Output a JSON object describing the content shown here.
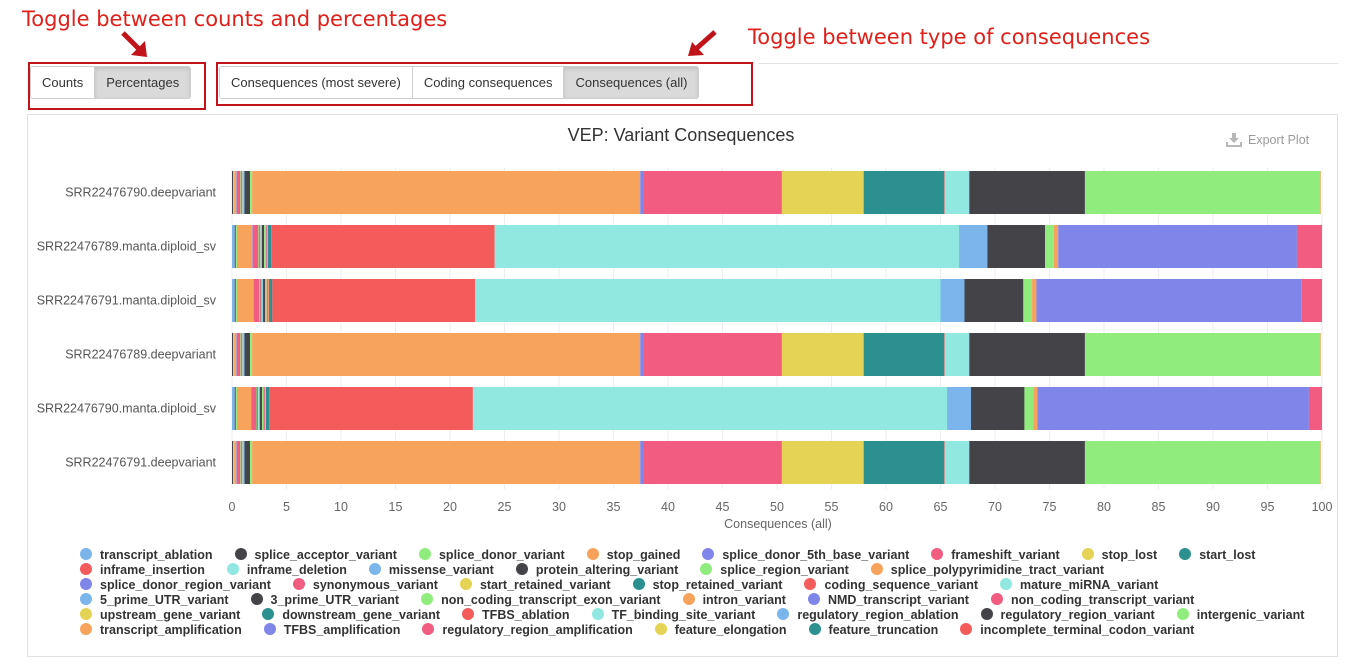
{
  "annotations": {
    "left": "Toggle between counts and percentages",
    "right": "Toggle between type of consequences"
  },
  "toggles": {
    "mode": {
      "items": [
        "Counts",
        "Percentages"
      ],
      "active": 1
    },
    "type": {
      "items": [
        "Consequences (most severe)",
        "Coding consequences",
        "Consequences (all)"
      ],
      "active": 2
    }
  },
  "export_label": "Export Plot",
  "colors": {
    "annotation": "#e0201b",
    "palette": [
      "#7cb5ec",
      "#434348",
      "#90ed7d",
      "#f7a35c",
      "#8085e9",
      "#f15c80",
      "#e4d354",
      "#2b908f",
      "#f45b5b",
      "#91e8e1"
    ]
  },
  "chart_data": {
    "type": "bar",
    "orientation": "horizontal",
    "stacked": true,
    "title": "VEP: Variant Consequences",
    "xlabel": "Consequences (all)",
    "xlim": [
      0,
      100
    ],
    "xticks": [
      0,
      5,
      10,
      15,
      20,
      25,
      30,
      35,
      40,
      45,
      50,
      55,
      60,
      65,
      70,
      75,
      80,
      85,
      90,
      95,
      100
    ],
    "categories": [
      "SRR22476790.deepvariant",
      "SRR22476789.manta.diploid_sv",
      "SRR22476791.manta.diploid_sv",
      "SRR22476789.deepvariant",
      "SRR22476790.manta.diploid_sv",
      "SRR22476791.deepvariant"
    ],
    "legend_position": "bottom",
    "series": [
      {
        "name": "transcript_ablation",
        "color": "#7cb5ec",
        "values": [
          0,
          0.25,
          0.25,
          0,
          0.25,
          0
        ]
      },
      {
        "name": "splice_acceptor_variant",
        "color": "#434348",
        "values": [
          0.1,
          0.1,
          0.1,
          0.1,
          0.1,
          0.1
        ]
      },
      {
        "name": "splice_donor_variant",
        "color": "#90ed7d",
        "values": [
          0.1,
          0.1,
          0.1,
          0.1,
          0.1,
          0.1
        ]
      },
      {
        "name": "stop_gained",
        "color": "#f7a35c",
        "values": [
          0.2,
          1.4,
          1.5,
          0.2,
          1.3,
          0.2
        ]
      },
      {
        "name": "splice_donor_5th_base_variant",
        "color": "#8085e9",
        "values": [
          0.05,
          0.05,
          0.05,
          0.05,
          0.05,
          0.05
        ]
      },
      {
        "name": "frameshift_variant",
        "color": "#f15c80",
        "values": [
          0.3,
          0.5,
          0.5,
          0.3,
          0.4,
          0.3
        ]
      },
      {
        "name": "stop_lost",
        "color": "#e4d354",
        "values": [
          0.05,
          0.05,
          0.05,
          0.05,
          0.05,
          0.05
        ]
      },
      {
        "name": "start_lost",
        "color": "#2b908f",
        "values": [
          0.05,
          0.05,
          0.05,
          0.05,
          0.05,
          0.05
        ]
      },
      {
        "name": "inframe_insertion",
        "color": "#f45b5b",
        "values": [
          0.1,
          0.1,
          0.1,
          0.1,
          0.1,
          0.1
        ]
      },
      {
        "name": "inframe_deletion",
        "color": "#91e8e1",
        "values": [
          0.1,
          0.1,
          0.1,
          0.1,
          0.1,
          0.1
        ]
      },
      {
        "name": "missense_variant",
        "color": "#7cb5ec",
        "values": [
          0.1,
          0.05,
          0.05,
          0.1,
          0.05,
          0.1
        ]
      },
      {
        "name": "protein_altering_variant",
        "color": "#434348",
        "values": [
          0.5,
          0.2,
          0.2,
          0.5,
          0.2,
          0.5
        ]
      },
      {
        "name": "splice_region_variant",
        "color": "#90ed7d",
        "values": [
          0.2,
          0.1,
          0.1,
          0.2,
          0.1,
          0.2
        ]
      },
      {
        "name": "splice_polypyrimidine_tract_variant",
        "color": "#f7a35c",
        "values": [
          35.6,
          0.05,
          0.05,
          35.6,
          0.05,
          35.6
        ]
      },
      {
        "name": "splice_donor_region_variant",
        "color": "#8085e9",
        "values": [
          0.3,
          0.05,
          0.05,
          0.3,
          0.05,
          0.3
        ]
      },
      {
        "name": "synonymous_variant",
        "color": "#f15c80",
        "values": [
          12.7,
          0.1,
          0.1,
          12.7,
          0.1,
          12.7
        ]
      },
      {
        "name": "start_retained_variant",
        "color": "#e4d354",
        "values": [
          7.5,
          0.05,
          0.05,
          7.5,
          0.05,
          7.5
        ]
      },
      {
        "name": "stop_retained_variant",
        "color": "#2b908f",
        "values": [
          7.4,
          0.3,
          0.3,
          7.4,
          0.3,
          7.4
        ]
      },
      {
        "name": "coding_sequence_variant",
        "color": "#f45b5b",
        "values": [
          0.05,
          20.5,
          18.6,
          0.05,
          18.7,
          0.05
        ]
      },
      {
        "name": "mature_miRNA_variant",
        "color": "#91e8e1",
        "values": [
          2.2,
          42.6,
          42.7,
          2.2,
          43.5,
          2.2
        ]
      },
      {
        "name": "5_prime_UTR_variant",
        "color": "#7cb5ec",
        "values": [
          0.05,
          2.6,
          2.2,
          0.05,
          2.2,
          0.05
        ]
      },
      {
        "name": "3_prime_UTR_variant",
        "color": "#434348",
        "values": [
          10.6,
          5.3,
          5.4,
          10.6,
          4.9,
          10.6
        ]
      },
      {
        "name": "non_coding_transcript_exon_variant",
        "color": "#90ed7d",
        "values": [
          21.6,
          0.8,
          0.8,
          21.6,
          0.8,
          21.6
        ]
      },
      {
        "name": "intron_variant",
        "color": "#f7a35c",
        "values": [
          0.05,
          0.4,
          0.4,
          0.05,
          0.4,
          0.05
        ]
      },
      {
        "name": "NMD_transcript_variant",
        "color": "#8085e9",
        "values": [
          0,
          21.9,
          24.3,
          0,
          24.9,
          0
        ]
      },
      {
        "name": "non_coding_transcript_variant",
        "color": "#f15c80",
        "values": [
          0,
          2.3,
          2.6,
          0,
          2.4,
          0
        ]
      },
      {
        "name": "upstream_gene_variant",
        "color": "#e4d354",
        "values": [
          0,
          0.1,
          0.05,
          0,
          0.05,
          0
        ]
      },
      {
        "name": "downstream_gene_variant",
        "color": "#2b908f",
        "values": [
          0,
          0.25,
          0.25,
          0,
          0.25,
          0
        ]
      },
      {
        "name": "TFBS_ablation",
        "color": "#f45b5b",
        "values": [
          0,
          0,
          0,
          0,
          0,
          0
        ]
      },
      {
        "name": "TF_binding_site_variant",
        "color": "#91e8e1",
        "values": [
          0,
          0,
          0,
          0,
          0,
          0
        ]
      },
      {
        "name": "regulatory_region_ablation",
        "color": "#7cb5ec",
        "values": [
          0,
          0,
          0,
          0,
          0,
          0
        ]
      },
      {
        "name": "regulatory_region_variant",
        "color": "#434348",
        "values": [
          0,
          0,
          0,
          0,
          0,
          0
        ]
      },
      {
        "name": "intergenic_variant",
        "color": "#90ed7d",
        "values": [
          0,
          0,
          0,
          0,
          0,
          0
        ]
      },
      {
        "name": "transcript_amplification",
        "color": "#f7a35c",
        "values": [
          0,
          0,
          0,
          0,
          0,
          0
        ]
      },
      {
        "name": "TFBS_amplification",
        "color": "#8085e9",
        "values": [
          0,
          0,
          0,
          0,
          0,
          0
        ]
      },
      {
        "name": "regulatory_region_amplification",
        "color": "#f15c80",
        "values": [
          0,
          0,
          0,
          0,
          0,
          0
        ]
      },
      {
        "name": "feature_elongation",
        "color": "#e4d354",
        "values": [
          0,
          0,
          0,
          0,
          0,
          0
        ]
      },
      {
        "name": "feature_truncation",
        "color": "#2b908f",
        "values": [
          0,
          0,
          0,
          0,
          0,
          0
        ]
      },
      {
        "name": "incomplete_terminal_codon_variant",
        "color": "#f45b5b",
        "values": [
          0,
          0,
          0,
          0,
          0,
          0
        ]
      }
    ]
  }
}
